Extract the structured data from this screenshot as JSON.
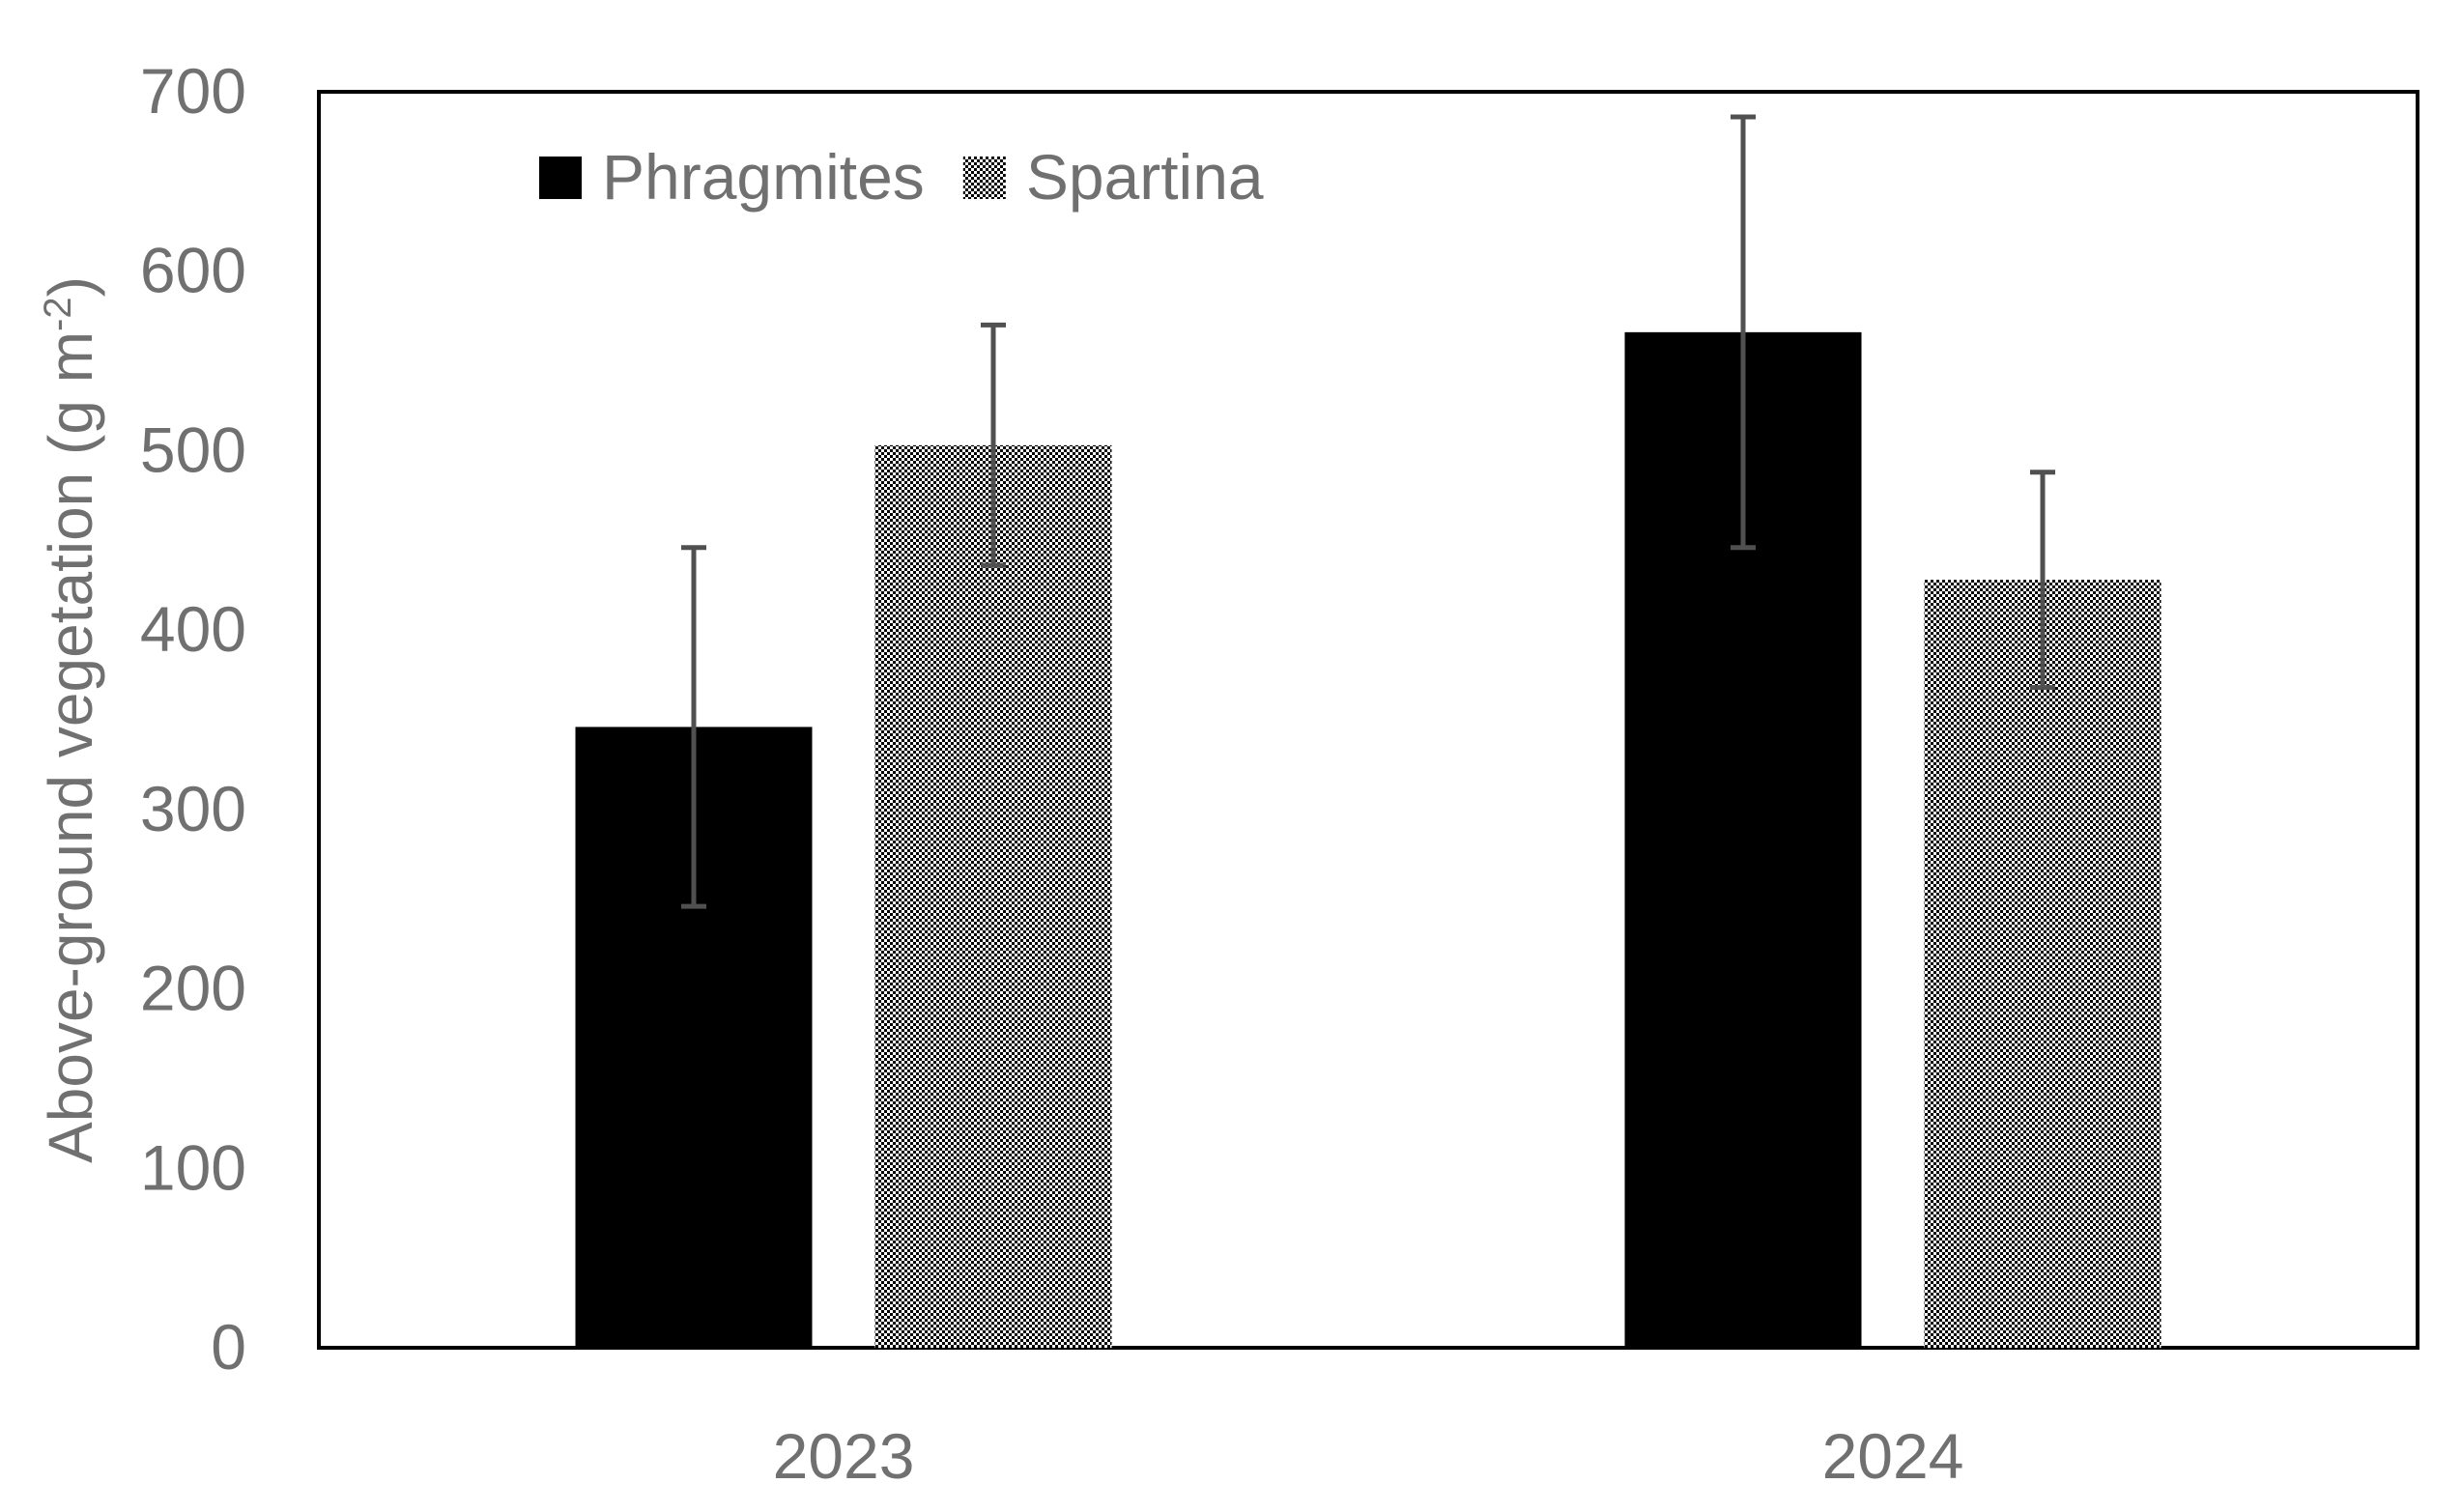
{
  "chart_data": {
    "type": "bar",
    "categories": [
      "2023",
      "2024"
    ],
    "series": [
      {
        "name": "Phragmites",
        "pattern": "solid",
        "values": [
          346,
          566
        ],
        "error": [
          100,
          120
        ]
      },
      {
        "name": "Spartina",
        "pattern": "checker",
        "values": [
          503,
          428
        ],
        "error": [
          67,
          60
        ]
      }
    ],
    "ylabel": "Above-ground vegetation (g m",
    "ylabel_sup": "-2",
    "ylabel_close": ")",
    "ylim": [
      0,
      700
    ],
    "yticks": [
      0,
      100,
      200,
      300,
      400,
      500,
      600,
      700
    ],
    "legend": "top-left, inside plot",
    "grid": false,
    "colors": {
      "bar": "#000000",
      "text": "#707070",
      "errorbar": "#505050",
      "frame": "#000000"
    }
  }
}
